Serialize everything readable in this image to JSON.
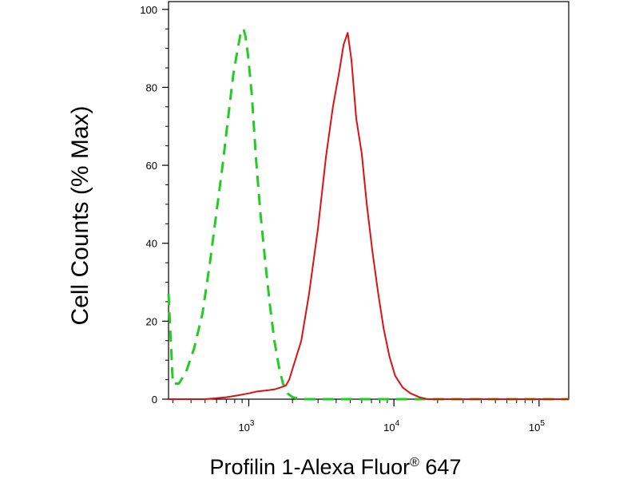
{
  "chart_data": {
    "type": "line",
    "xlabel": "Profilin 1-Alexa Fluor",
    "xlabel_superscript": "®",
    "xlabel_suffix": " 647",
    "ylabel": "Cell Counts (% Max)",
    "x_scale": "log",
    "xlim": [
      280,
      160000
    ],
    "ylim": [
      0,
      102
    ],
    "y_ticks": [
      0,
      20,
      40,
      60,
      80,
      100
    ],
    "x_ticks": [
      {
        "value": 1000,
        "base": "10",
        "exp": "3"
      },
      {
        "value": 10000,
        "base": "10",
        "exp": "4"
      },
      {
        "value": 100000,
        "base": "10",
        "exp": "5"
      }
    ],
    "grid": false,
    "series": [
      {
        "style": "dashed",
        "color": "#22cc22",
        "x": [
          280,
          300,
          330,
          370,
          420,
          480,
          540,
          600,
          660,
          720,
          780,
          830,
          880,
          920,
          950,
          990,
          1050,
          1120,
          1200,
          1300,
          1400,
          1500,
          1620,
          1720,
          1850,
          2000,
          2300,
          3000,
          5000,
          10000,
          30000,
          160000
        ],
        "y": [
          27,
          4,
          4,
          7,
          13,
          22,
          35,
          48,
          60,
          72,
          83,
          89,
          94,
          95,
          93,
          88,
          78,
          62,
          48,
          35,
          24,
          15,
          8,
          4,
          1.5,
          0.5,
          0,
          0,
          0,
          0,
          0,
          0
        ]
      },
      {
        "style": "solid",
        "color": "#dd1111",
        "x": [
          280,
          500,
          700,
          850,
          1000,
          1150,
          1300,
          1500,
          1650,
          1800,
          1900,
          2050,
          2300,
          2600,
          3000,
          3400,
          3800,
          4200,
          4500,
          4800,
          5100,
          5500,
          6000,
          6500,
          7100,
          7800,
          8500,
          9300,
          10200,
          11500,
          13000,
          15000,
          17000,
          20000,
          50000,
          160000
        ],
        "y": [
          0,
          0,
          0.5,
          1,
          1.5,
          2,
          2.2,
          2.5,
          3,
          3.5,
          5,
          9,
          15,
          27,
          44,
          62,
          75,
          84,
          91,
          94,
          87,
          72,
          63,
          50,
          38,
          27,
          18,
          11,
          6,
          3,
          1.5,
          0.5,
          0,
          0,
          0,
          0
        ]
      }
    ]
  }
}
